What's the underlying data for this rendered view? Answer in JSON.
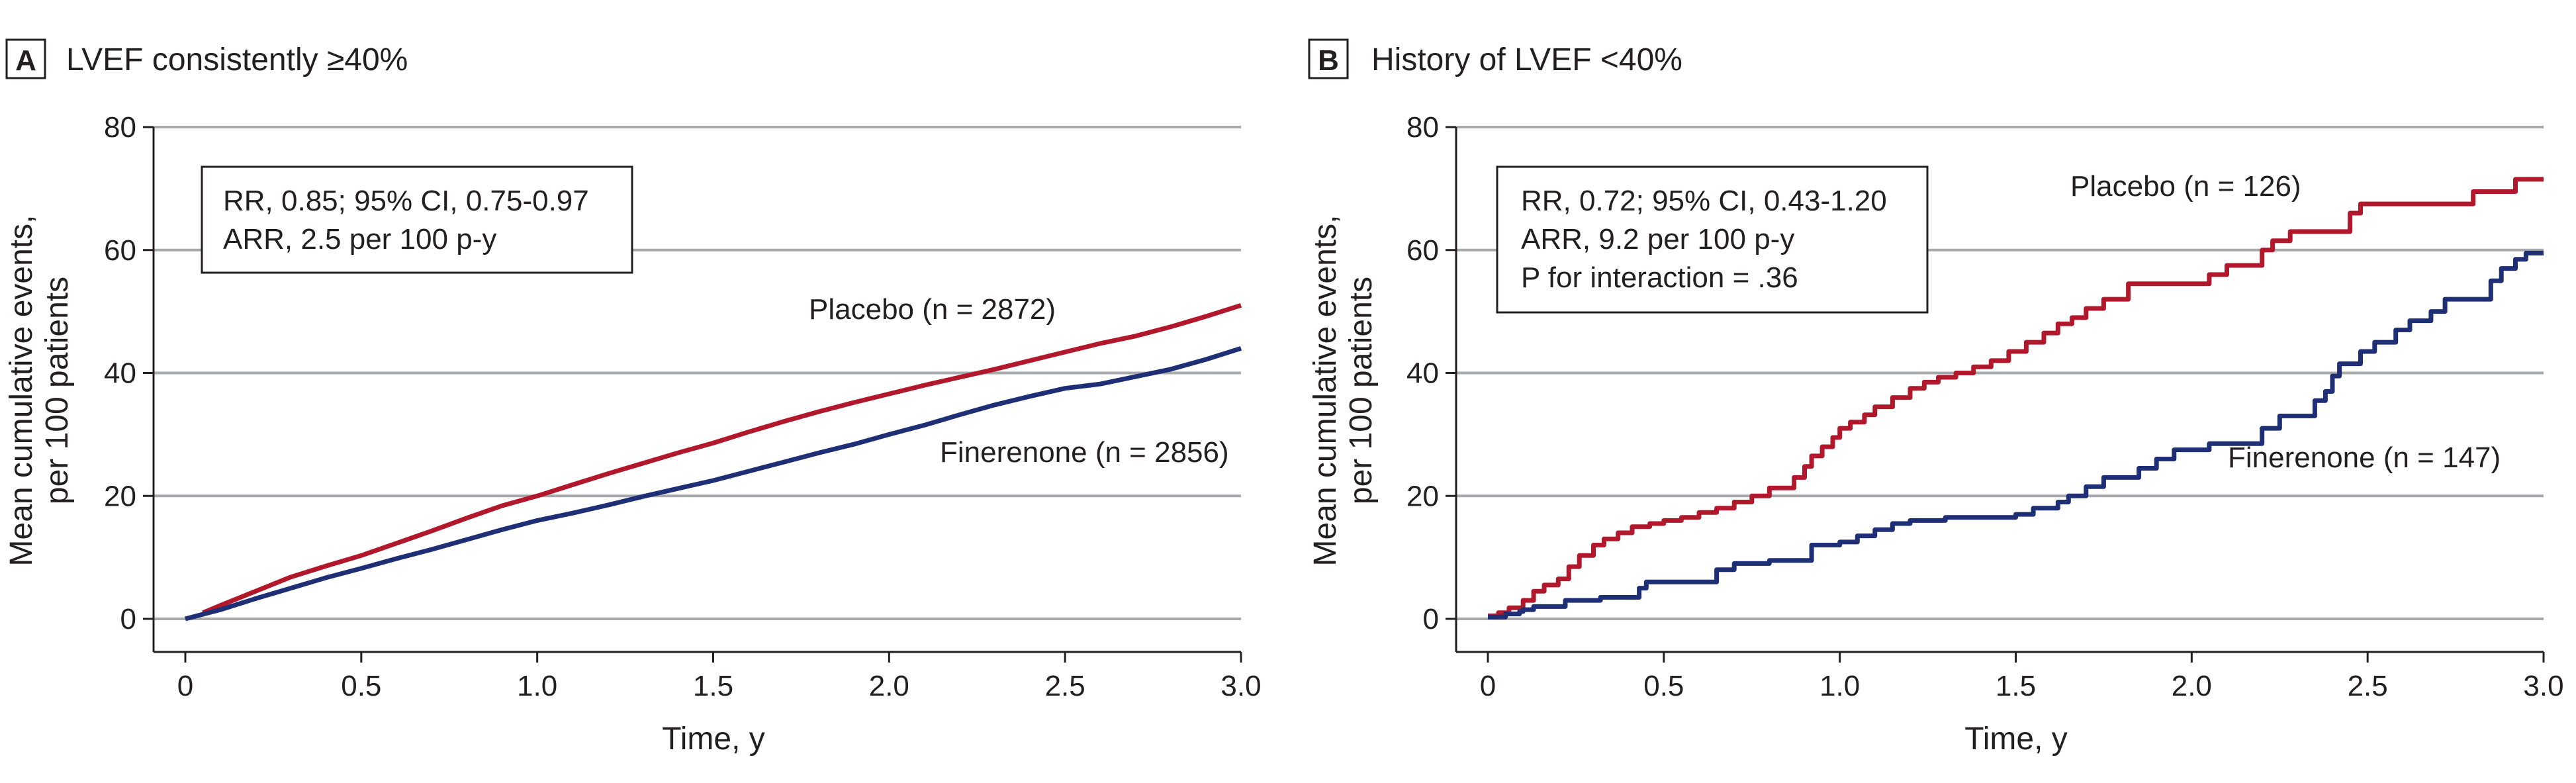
{
  "chart_data": [
    {
      "type": "line",
      "panel_letter": "A",
      "title": "LVEF consistently ≥40%",
      "xlabel": "Time, y",
      "ylabel_lines": [
        "Mean cumulative events,",
        "per 100 patients"
      ],
      "xlim": [
        0,
        3.0
      ],
      "ylim": [
        0,
        80
      ],
      "xticks": [
        0,
        0.5,
        1.0,
        1.5,
        2.0,
        2.5,
        3.0
      ],
      "xtick_labels": [
        "0",
        "0.5",
        "1.0",
        "1.5",
        "2.0",
        "2.5",
        "3.0"
      ],
      "yticks": [
        0,
        20,
        40,
        60,
        80
      ],
      "ytick_labels": [
        "0",
        "20",
        "40",
        "60",
        "80"
      ],
      "grid": true,
      "stats": [
        "RR, 0.85; 95% CI, 0.75-0.97",
        "ARR, 2.5 per 100 p-y"
      ],
      "series": [
        {
          "name": "Placebo (n = 2872)",
          "color": "#b2182b",
          "step": false,
          "x": [
            0.05,
            0.1,
            0.2,
            0.3,
            0.4,
            0.5,
            0.6,
            0.7,
            0.8,
            0.9,
            1.0,
            1.1,
            1.2,
            1.3,
            1.4,
            1.5,
            1.6,
            1.7,
            1.8,
            1.9,
            2.0,
            2.1,
            2.2,
            2.3,
            2.4,
            2.5,
            2.6,
            2.7,
            2.8,
            2.9,
            3.0
          ],
          "y": [
            1.0,
            2.2,
            4.5,
            6.8,
            8.6,
            10.3,
            12.3,
            14.3,
            16.4,
            18.4,
            20.0,
            21.8,
            23.6,
            25.3,
            27.0,
            28.6,
            30.4,
            32.1,
            33.7,
            35.2,
            36.6,
            38.0,
            39.3,
            40.6,
            42.0,
            43.4,
            44.8,
            46.0,
            47.5,
            49.2,
            51.0
          ]
        },
        {
          "name": "Finerenone (n = 2856)",
          "color": "#1f2f75",
          "step": false,
          "x": [
            0,
            0.1,
            0.2,
            0.3,
            0.4,
            0.5,
            0.6,
            0.7,
            0.8,
            0.9,
            1.0,
            1.1,
            1.2,
            1.3,
            1.4,
            1.5,
            1.6,
            1.7,
            1.8,
            1.9,
            2.0,
            2.1,
            2.2,
            2.3,
            2.4,
            2.5,
            2.6,
            2.7,
            2.8,
            2.9,
            3.0
          ],
          "y": [
            0,
            1.5,
            3.3,
            5.0,
            6.7,
            8.2,
            9.8,
            11.3,
            12.9,
            14.5,
            16.0,
            17.2,
            18.5,
            19.9,
            21.2,
            22.5,
            24.0,
            25.5,
            27.0,
            28.4,
            30.0,
            31.5,
            33.2,
            34.8,
            36.2,
            37.5,
            38.2,
            39.4,
            40.6,
            42.2,
            44.0
          ]
        }
      ]
    },
    {
      "type": "line",
      "panel_letter": "B",
      "title": "History of LVEF <40%",
      "xlabel": "Time, y",
      "ylabel_lines": [
        "Mean cumulative events,",
        "per 100 patients"
      ],
      "xlim": [
        0,
        3.0
      ],
      "ylim": [
        0,
        80
      ],
      "xticks": [
        0,
        0.5,
        1.0,
        1.5,
        2.0,
        2.5,
        3.0
      ],
      "xtick_labels": [
        "0",
        "0.5",
        "1.0",
        "1.5",
        "2.0",
        "2.5",
        "3.0"
      ],
      "yticks": [
        0,
        20,
        40,
        60,
        80
      ],
      "ytick_labels": [
        "0",
        "20",
        "40",
        "60",
        "80"
      ],
      "grid": true,
      "stats": [
        "RR, 0.72; 95% CI, 0.43-1.20",
        "ARR, 9.2 per 100 p-y",
        "P for interaction = .36"
      ],
      "series": [
        {
          "name": "Placebo (n = 126)",
          "color": "#b2182b",
          "step": true,
          "x": [
            0,
            0.03,
            0.06,
            0.1,
            0.13,
            0.16,
            0.2,
            0.23,
            0.26,
            0.3,
            0.33,
            0.37,
            0.41,
            0.46,
            0.5,
            0.55,
            0.6,
            0.65,
            0.7,
            0.75,
            0.8,
            0.87,
            0.9,
            0.92,
            0.95,
            0.98,
            1.0,
            1.03,
            1.07,
            1.1,
            1.15,
            1.2,
            1.24,
            1.28,
            1.33,
            1.38,
            1.43,
            1.48,
            1.53,
            1.58,
            1.62,
            1.66,
            1.7,
            1.75,
            1.82,
            2.05,
            2.1,
            2.2,
            2.23,
            2.28,
            2.45,
            2.48,
            2.8,
            2.92,
            3.0
          ],
          "y": [
            0.5,
            1.0,
            1.8,
            3.0,
            4.5,
            5.5,
            6.5,
            8.5,
            10.3,
            12.0,
            13.0,
            14.0,
            15.0,
            15.5,
            16.0,
            16.5,
            17.3,
            18.0,
            19.0,
            20.0,
            21.3,
            23.0,
            24.8,
            26.5,
            28.0,
            29.5,
            31.0,
            32.0,
            33.2,
            34.5,
            36.0,
            37.5,
            38.5,
            39.3,
            40.0,
            41.0,
            42.0,
            43.5,
            45.0,
            46.5,
            48.0,
            49.0,
            50.5,
            52.0,
            54.5,
            56.0,
            57.5,
            60.0,
            61.5,
            63.0,
            66.0,
            67.5,
            69.5,
            71.5,
            71.5
          ]
        },
        {
          "name": "Finerenone (n = 147)",
          "color": "#1f2f75",
          "step": true,
          "x": [
            0,
            0.05,
            0.09,
            0.1,
            0.13,
            0.22,
            0.32,
            0.43,
            0.45,
            0.65,
            0.7,
            0.8,
            0.92,
            1.0,
            1.05,
            1.1,
            1.15,
            1.2,
            1.3,
            1.5,
            1.55,
            1.62,
            1.65,
            1.7,
            1.75,
            1.85,
            1.9,
            1.95,
            2.05,
            2.2,
            2.25,
            2.35,
            2.38,
            2.4,
            2.42,
            2.48,
            2.52,
            2.58,
            2.62,
            2.68,
            2.72,
            2.85,
            2.88,
            2.92,
            2.95,
            3.0
          ],
          "y": [
            0.3,
            0.8,
            1.2,
            1.5,
            2.0,
            3.0,
            3.5,
            5.0,
            6.0,
            8.0,
            9.0,
            9.5,
            12.0,
            12.5,
            13.5,
            14.5,
            15.5,
            16.0,
            16.5,
            17.0,
            18.0,
            19.0,
            20.0,
            21.5,
            23.0,
            24.5,
            26.0,
            27.5,
            28.5,
            31.0,
            33.0,
            35.5,
            37.0,
            39.5,
            41.5,
            43.5,
            45.0,
            47.0,
            48.5,
            50.0,
            52.0,
            55.0,
            57.0,
            58.5,
            59.5,
            59.5
          ]
        }
      ]
    }
  ]
}
